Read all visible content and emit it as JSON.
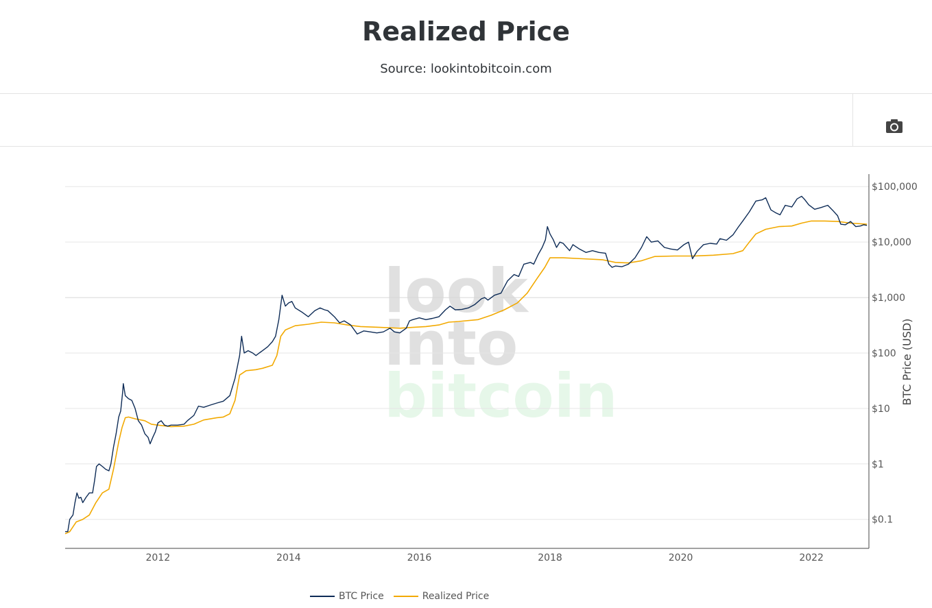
{
  "header": {
    "title": "Realized Price",
    "subtitle": "Source: lookintobitcoin.com"
  },
  "toolbar": {
    "camera_icon": "camera-icon"
  },
  "watermark": {
    "line1": "look",
    "line2": "into",
    "line3": "bitcoin"
  },
  "colors": {
    "btc": "#0d2b56",
    "realized": "#f2a900",
    "grid": "#e6e6e6",
    "watermark_gray": "#e0e0e0",
    "watermark_green": "#e6f7e9"
  },
  "chart_data": {
    "type": "line",
    "title": "Realized Price",
    "ylabel": "BTC Price (USD)",
    "yscale": "log",
    "ylim": [
      0.03,
      150000
    ],
    "xlim": [
      2010.58,
      2022.88
    ],
    "x_ticks": [
      "2012",
      "2014",
      "2016",
      "2018",
      "2020",
      "2022"
    ],
    "y_ticks": [
      {
        "value": 0.1,
        "label": "$0.1"
      },
      {
        "value": 1,
        "label": "$1"
      },
      {
        "value": 10,
        "label": "$10"
      },
      {
        "value": 100,
        "label": "$100"
      },
      {
        "value": 1000,
        "label": "$1,000"
      },
      {
        "value": 10000,
        "label": "$10,000"
      },
      {
        "value": 100000,
        "label": "$100,000"
      }
    ],
    "legend_position": "bottom",
    "series": [
      {
        "name": "BTC Price",
        "color": "#0d2b56",
        "points": [
          [
            2010.58,
            0.06
          ],
          [
            2010.62,
            0.06
          ],
          [
            2010.65,
            0.1
          ],
          [
            2010.7,
            0.12
          ],
          [
            2010.73,
            0.2
          ],
          [
            2010.76,
            0.3
          ],
          [
            2010.79,
            0.24
          ],
          [
            2010.82,
            0.25
          ],
          [
            2010.85,
            0.2
          ],
          [
            2010.9,
            0.25
          ],
          [
            2010.95,
            0.3
          ],
          [
            2011.0,
            0.3
          ],
          [
            2011.03,
            0.5
          ],
          [
            2011.06,
            0.9
          ],
          [
            2011.1,
            1.0
          ],
          [
            2011.15,
            0.9
          ],
          [
            2011.2,
            0.8
          ],
          [
            2011.25,
            0.75
          ],
          [
            2011.28,
            1.0
          ],
          [
            2011.32,
            2.0
          ],
          [
            2011.36,
            3.5
          ],
          [
            2011.4,
            7.0
          ],
          [
            2011.43,
            9.0
          ],
          [
            2011.46,
            20.0
          ],
          [
            2011.47,
            28.0
          ],
          [
            2011.5,
            17.0
          ],
          [
            2011.55,
            15.0
          ],
          [
            2011.6,
            14.0
          ],
          [
            2011.65,
            10.0
          ],
          [
            2011.7,
            6.0
          ],
          [
            2011.75,
            5.0
          ],
          [
            2011.8,
            3.5
          ],
          [
            2011.85,
            3.0
          ],
          [
            2011.88,
            2.3
          ],
          [
            2011.92,
            3.0
          ],
          [
            2011.96,
            3.8
          ],
          [
            2012.0,
            5.5
          ],
          [
            2012.05,
            6.0
          ],
          [
            2012.1,
            5.0
          ],
          [
            2012.15,
            4.8
          ],
          [
            2012.2,
            5.0
          ],
          [
            2012.3,
            5.0
          ],
          [
            2012.4,
            5.2
          ],
          [
            2012.45,
            6.0
          ],
          [
            2012.55,
            7.5
          ],
          [
            2012.62,
            11.0
          ],
          [
            2012.7,
            10.5
          ],
          [
            2012.8,
            11.5
          ],
          [
            2012.9,
            12.5
          ],
          [
            2013.0,
            13.5
          ],
          [
            2013.1,
            17.0
          ],
          [
            2013.18,
            35.0
          ],
          [
            2013.25,
            90.0
          ],
          [
            2013.28,
            200.0
          ],
          [
            2013.32,
            100.0
          ],
          [
            2013.38,
            110.0
          ],
          [
            2013.45,
            100.0
          ],
          [
            2013.5,
            90.0
          ],
          [
            2013.55,
            100.0
          ],
          [
            2013.6,
            110.0
          ],
          [
            2013.68,
            130.0
          ],
          [
            2013.75,
            160.0
          ],
          [
            2013.8,
            200.0
          ],
          [
            2013.85,
            400.0
          ],
          [
            2013.9,
            1100.0
          ],
          [
            2013.95,
            700.0
          ],
          [
            2014.0,
            800.0
          ],
          [
            2014.05,
            850.0
          ],
          [
            2014.1,
            650.0
          ],
          [
            2014.2,
            550.0
          ],
          [
            2014.3,
            450.0
          ],
          [
            2014.4,
            580.0
          ],
          [
            2014.48,
            650.0
          ],
          [
            2014.55,
            600.0
          ],
          [
            2014.6,
            580.0
          ],
          [
            2014.7,
            450.0
          ],
          [
            2014.78,
            350.0
          ],
          [
            2014.85,
            380.0
          ],
          [
            2014.95,
            320.0
          ],
          [
            2015.05,
            220.0
          ],
          [
            2015.15,
            250.0
          ],
          [
            2015.25,
            240.0
          ],
          [
            2015.35,
            230.0
          ],
          [
            2015.45,
            240.0
          ],
          [
            2015.55,
            280.0
          ],
          [
            2015.62,
            240.0
          ],
          [
            2015.7,
            230.0
          ],
          [
            2015.8,
            280.0
          ],
          [
            2015.85,
            380.0
          ],
          [
            2015.9,
            400.0
          ],
          [
            2016.0,
            430.0
          ],
          [
            2016.1,
            400.0
          ],
          [
            2016.2,
            420.0
          ],
          [
            2016.3,
            450.0
          ],
          [
            2016.4,
            600.0
          ],
          [
            2016.47,
            700.0
          ],
          [
            2016.55,
            600.0
          ],
          [
            2016.65,
            610.0
          ],
          [
            2016.75,
            650.0
          ],
          [
            2016.85,
            750.0
          ],
          [
            2016.95,
            950.0
          ],
          [
            2017.0,
            1000.0
          ],
          [
            2017.05,
            900.0
          ],
          [
            2017.15,
            1100.0
          ],
          [
            2017.25,
            1200.0
          ],
          [
            2017.35,
            2000.0
          ],
          [
            2017.45,
            2600.0
          ],
          [
            2017.52,
            2400.0
          ],
          [
            2017.6,
            4000.0
          ],
          [
            2017.7,
            4300.0
          ],
          [
            2017.75,
            4000.0
          ],
          [
            2017.82,
            6000.0
          ],
          [
            2017.88,
            8000.0
          ],
          [
            2017.93,
            11000.0
          ],
          [
            2017.96,
            19000.0
          ],
          [
            2018.0,
            14000.0
          ],
          [
            2018.05,
            11000.0
          ],
          [
            2018.1,
            8000.0
          ],
          [
            2018.15,
            10000.0
          ],
          [
            2018.2,
            9500.0
          ],
          [
            2018.3,
            7000.0
          ],
          [
            2018.35,
            9000.0
          ],
          [
            2018.45,
            7500.0
          ],
          [
            2018.55,
            6500.0
          ],
          [
            2018.65,
            7000.0
          ],
          [
            2018.75,
            6500.0
          ],
          [
            2018.85,
            6300.0
          ],
          [
            2018.9,
            4000.0
          ],
          [
            2018.95,
            3500.0
          ],
          [
            2019.0,
            3700.0
          ],
          [
            2019.1,
            3600.0
          ],
          [
            2019.2,
            4000.0
          ],
          [
            2019.3,
            5200.0
          ],
          [
            2019.4,
            8000.0
          ],
          [
            2019.48,
            12500.0
          ],
          [
            2019.55,
            10000.0
          ],
          [
            2019.65,
            10500.0
          ],
          [
            2019.75,
            8000.0
          ],
          [
            2019.85,
            7500.0
          ],
          [
            2019.95,
            7200.0
          ],
          [
            2020.05,
            9000.0
          ],
          [
            2020.12,
            10000.0
          ],
          [
            2020.18,
            5000.0
          ],
          [
            2020.25,
            6800.0
          ],
          [
            2020.35,
            9000.0
          ],
          [
            2020.45,
            9500.0
          ],
          [
            2020.55,
            9200.0
          ],
          [
            2020.6,
            11500.0
          ],
          [
            2020.7,
            10800.0
          ],
          [
            2020.8,
            13500.0
          ],
          [
            2020.88,
            18500.0
          ],
          [
            2020.95,
            24000.0
          ],
          [
            2021.05,
            35000.0
          ],
          [
            2021.15,
            55000.0
          ],
          [
            2021.25,
            58000.0
          ],
          [
            2021.3,
            63000.0
          ],
          [
            2021.38,
            38000.0
          ],
          [
            2021.45,
            34000.0
          ],
          [
            2021.52,
            31000.0
          ],
          [
            2021.6,
            46000.0
          ],
          [
            2021.7,
            43000.0
          ],
          [
            2021.78,
            60000.0
          ],
          [
            2021.85,
            67000.0
          ],
          [
            2021.9,
            58000.0
          ],
          [
            2021.96,
            47000.0
          ],
          [
            2022.05,
            39000.0
          ],
          [
            2022.15,
            42000.0
          ],
          [
            2022.25,
            46000.0
          ],
          [
            2022.32,
            38000.0
          ],
          [
            2022.4,
            30000.0
          ],
          [
            2022.45,
            21000.0
          ],
          [
            2022.52,
            20500.0
          ],
          [
            2022.6,
            23500.0
          ],
          [
            2022.68,
            19000.0
          ],
          [
            2022.75,
            19500.0
          ],
          [
            2022.8,
            20500.0
          ],
          [
            2022.85,
            20000.0
          ]
        ]
      },
      {
        "name": "Realized Price",
        "color": "#f2a900",
        "points": [
          [
            2010.58,
            0.055
          ],
          [
            2010.65,
            0.06
          ],
          [
            2010.75,
            0.09
          ],
          [
            2010.85,
            0.1
          ],
          [
            2010.95,
            0.12
          ],
          [
            2011.05,
            0.2
          ],
          [
            2011.15,
            0.3
          ],
          [
            2011.25,
            0.35
          ],
          [
            2011.32,
            0.8
          ],
          [
            2011.4,
            2.5
          ],
          [
            2011.45,
            4.5
          ],
          [
            2011.5,
            6.8
          ],
          [
            2011.55,
            7.0
          ],
          [
            2011.65,
            6.5
          ],
          [
            2011.8,
            6.0
          ],
          [
            2011.9,
            5.2
          ],
          [
            2012.0,
            5.0
          ],
          [
            2012.2,
            4.7
          ],
          [
            2012.4,
            4.8
          ],
          [
            2012.55,
            5.2
          ],
          [
            2012.7,
            6.2
          ],
          [
            2012.9,
            6.8
          ],
          [
            2013.0,
            7.0
          ],
          [
            2013.1,
            8.0
          ],
          [
            2013.18,
            14.0
          ],
          [
            2013.25,
            40.0
          ],
          [
            2013.35,
            48.0
          ],
          [
            2013.5,
            50.0
          ],
          [
            2013.6,
            53.0
          ],
          [
            2013.75,
            60.0
          ],
          [
            2013.82,
            90.0
          ],
          [
            2013.88,
            200.0
          ],
          [
            2013.95,
            260.0
          ],
          [
            2014.1,
            310.0
          ],
          [
            2014.3,
            330.0
          ],
          [
            2014.5,
            360.0
          ],
          [
            2014.7,
            350.0
          ],
          [
            2014.9,
            320.0
          ],
          [
            2015.1,
            300.0
          ],
          [
            2015.4,
            290.0
          ],
          [
            2015.7,
            280.0
          ],
          [
            2015.9,
            290.0
          ],
          [
            2016.1,
            300.0
          ],
          [
            2016.3,
            320.0
          ],
          [
            2016.45,
            360.0
          ],
          [
            2016.6,
            370.0
          ],
          [
            2016.9,
            400.0
          ],
          [
            2017.1,
            480.0
          ],
          [
            2017.3,
            600.0
          ],
          [
            2017.5,
            800.0
          ],
          [
            2017.65,
            1200.0
          ],
          [
            2017.8,
            2200.0
          ],
          [
            2017.92,
            3500.0
          ],
          [
            2018.0,
            5200.0
          ],
          [
            2018.2,
            5200.0
          ],
          [
            2018.5,
            5000.0
          ],
          [
            2018.8,
            4800.0
          ],
          [
            2019.0,
            4300.0
          ],
          [
            2019.2,
            4200.0
          ],
          [
            2019.4,
            4600.0
          ],
          [
            2019.6,
            5500.0
          ],
          [
            2019.9,
            5600.0
          ],
          [
            2020.2,
            5600.0
          ],
          [
            2020.5,
            5800.0
          ],
          [
            2020.8,
            6200.0
          ],
          [
            2020.95,
            7000.0
          ],
          [
            2021.05,
            10000.0
          ],
          [
            2021.15,
            14000.0
          ],
          [
            2021.3,
            17000.0
          ],
          [
            2021.5,
            19000.0
          ],
          [
            2021.7,
            19500.0
          ],
          [
            2021.85,
            22000.0
          ],
          [
            2022.0,
            24000.0
          ],
          [
            2022.2,
            24000.0
          ],
          [
            2022.4,
            23500.0
          ],
          [
            2022.6,
            22000.0
          ],
          [
            2022.85,
            21000.0
          ]
        ]
      }
    ]
  },
  "legend": {
    "btc_label": "BTC Price",
    "realized_label": "Realized Price"
  }
}
